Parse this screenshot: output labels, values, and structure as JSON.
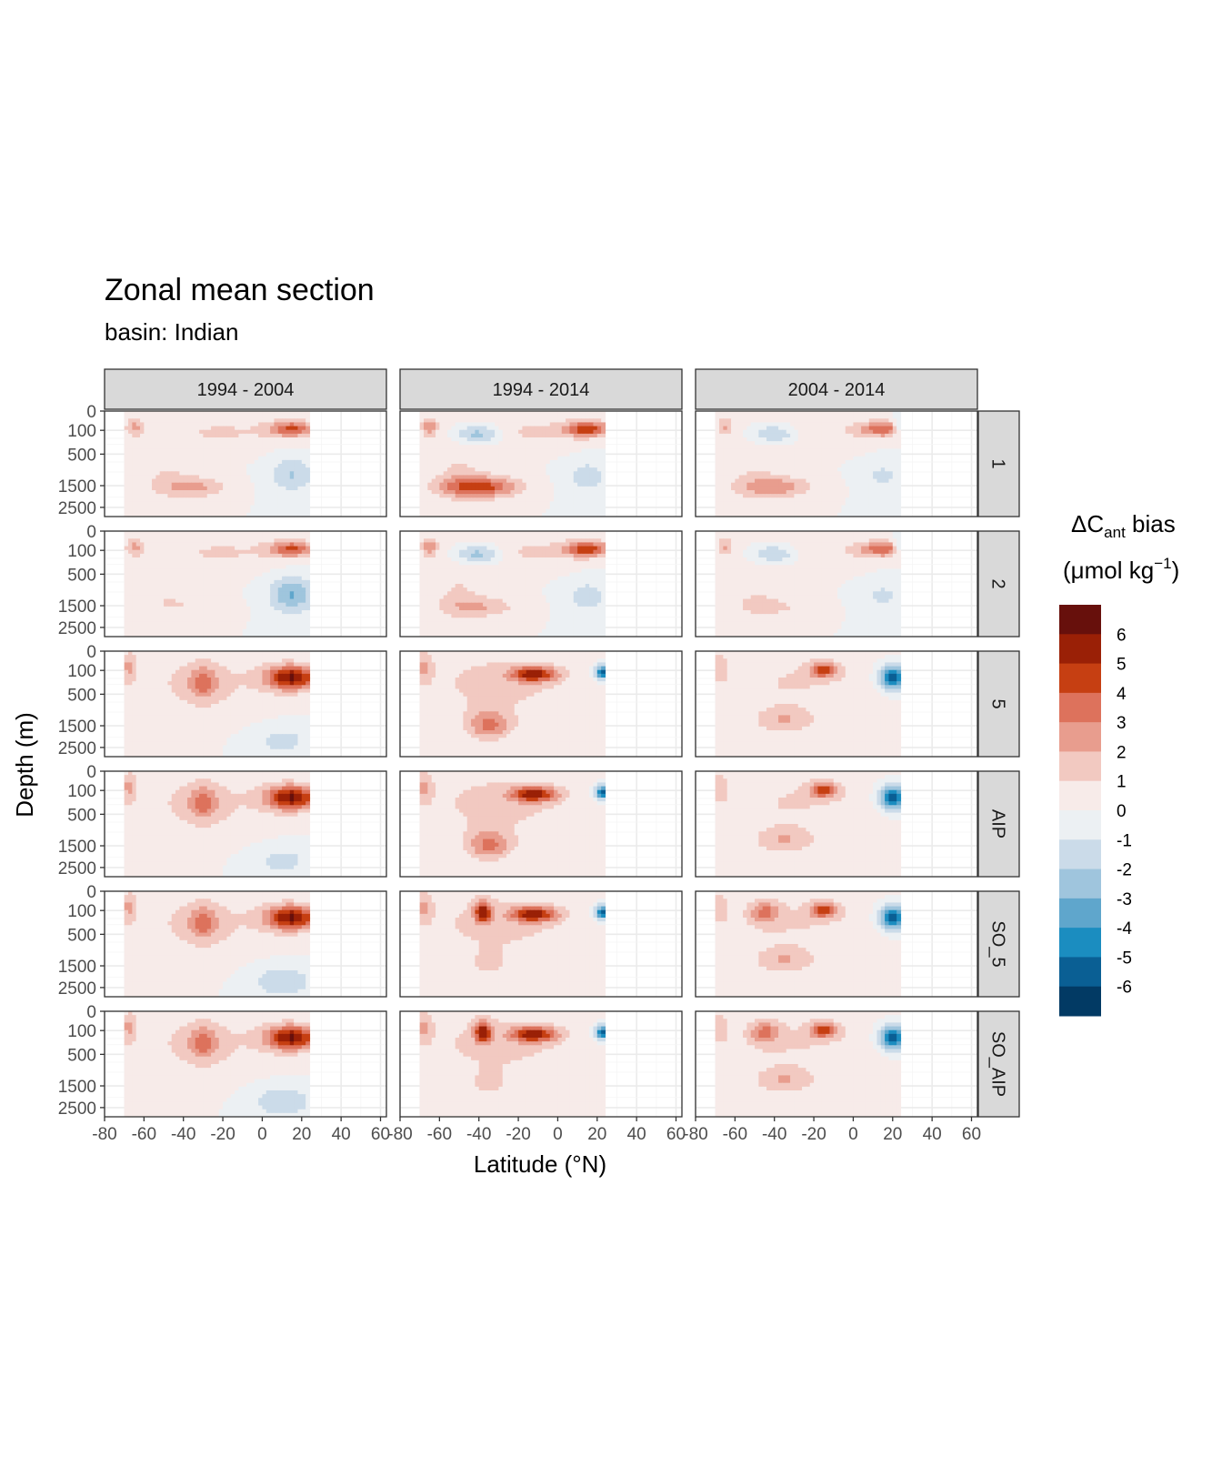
{
  "chart_data": {
    "type": "heatmap",
    "title": "Zonal mean section",
    "subtitle": "basin: Indian",
    "xlabel": "Latitude (°N)",
    "ylabel": "Depth (m)",
    "x_ticks": [
      -80,
      -60,
      -40,
      -20,
      0,
      20,
      40,
      60
    ],
    "x_tick_labels": [
      "-80",
      "-60",
      "-40",
      "-20",
      "0",
      "20",
      "40",
      "60"
    ],
    "xlim": [
      -80,
      63
    ],
    "y_ticks": [
      0,
      100,
      500,
      1500,
      2500
    ],
    "y_tick_labels": [
      "0",
      "100",
      "500",
      "1500",
      "2500"
    ],
    "ylim": [
      0,
      3000
    ],
    "y_scale": "sqrt-reversed",
    "data_lat_range": [
      -70,
      24
    ],
    "grid": true,
    "col_facets": [
      "1994 - 2004",
      "1994 - 2014",
      "2004 - 2014"
    ],
    "row_facets": [
      "1",
      "2",
      "5",
      "AIP",
      "SO_5",
      "SO_AIP"
    ],
    "legend": {
      "title_main": "ΔC",
      "title_sub": "ant",
      "title_rest": " bias",
      "unit_main": "(μmol kg",
      "unit_sup": "−1",
      "unit_close": ")",
      "position": "right",
      "breaks": [
        "6",
        "5",
        "4",
        "3",
        "2",
        "1",
        "0",
        "-1",
        "-2",
        "-3",
        "-4",
        "-5",
        "-6"
      ],
      "colors": [
        "#67100c",
        "#9a2006",
        "#c63f12",
        "#dd725c",
        "#e89d8e",
        "#f2c9c1",
        "#f7ebe9",
        "#ecf0f3",
        "#cbdbe9",
        "#9fc5dd",
        "#5fa6cc",
        "#1b8dc0",
        "#0a5f94",
        "#023a64"
      ]
    },
    "panels_value_range": [
      -6,
      6
    ]
  },
  "colors": {
    "strip_fill": "#d9d9d9",
    "strip_border": "#333333",
    "grid_major": "#ebebeb",
    "grid_minor": "#f5f5f5"
  }
}
